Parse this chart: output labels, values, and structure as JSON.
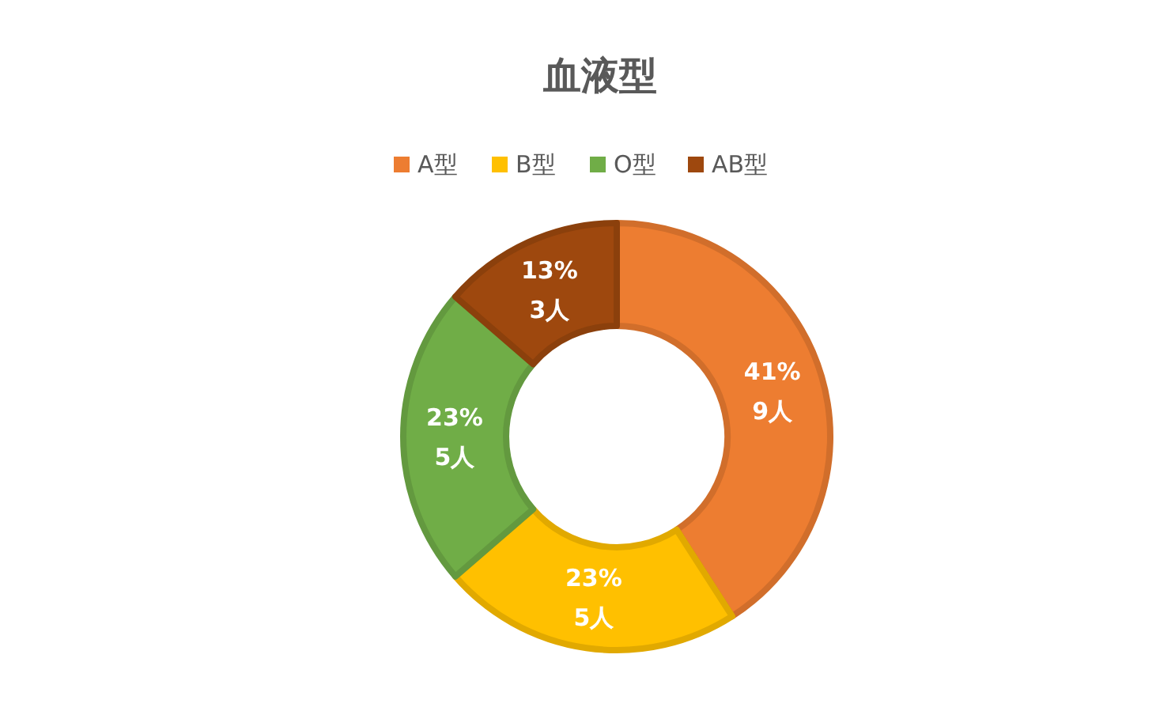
{
  "chart_data": {
    "type": "donut",
    "title": "血液型",
    "categories": [
      "A型",
      "B型",
      "O型",
      "AB型"
    ],
    "values": [
      9,
      5,
      5,
      3
    ],
    "colors": [
      "#ed7d31",
      "#ffc000",
      "#70ad47",
      "#9e480e"
    ],
    "value_labels": [
      "41%\n9人",
      "23%\n5人",
      "23%\n5人",
      "13%\n3人"
    ],
    "legend": "top"
  }
}
